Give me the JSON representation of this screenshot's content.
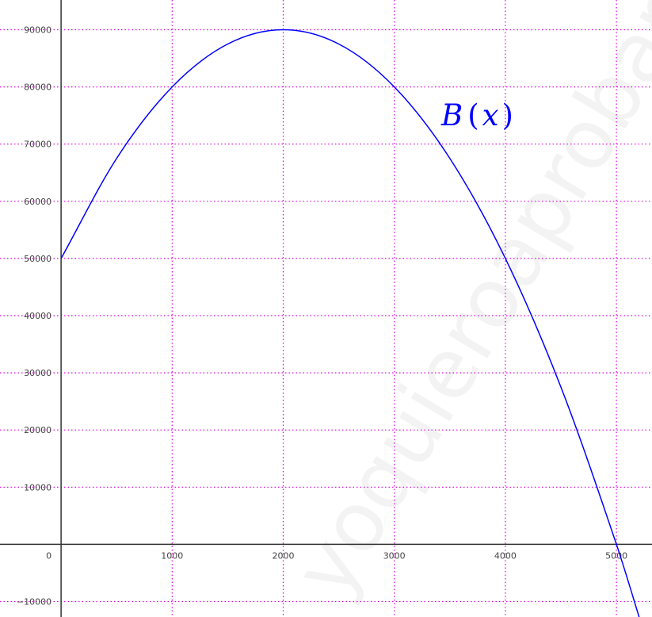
{
  "chart_data": {
    "type": "line",
    "title": "",
    "xlabel": "",
    "ylabel": "",
    "xlim": [
      -550,
      5320
    ],
    "ylim": [
      -12700,
      95200
    ],
    "x_ticks": [
      1000,
      2000,
      3000,
      4000,
      5000
    ],
    "y_ticks": [
      -10000,
      10000,
      20000,
      30000,
      40000,
      50000,
      60000,
      70000,
      80000,
      90000
    ],
    "origin_label": "0",
    "grid": true,
    "grid_color": "#e000e0",
    "axis_color": "#333333",
    "series": [
      {
        "name": "B(x)",
        "color": "#0000ff",
        "function": "B(x) = -0.01x^2 + 40x + 50000",
        "x": [
          0,
          500,
          1000,
          1500,
          2000,
          2500,
          3000,
          3500,
          4000,
          4500,
          5000,
          5240
        ],
        "y": [
          50000,
          67500,
          80000,
          87500,
          90000,
          87500,
          80000,
          67500,
          50000,
          27500,
          0,
          -14976
        ]
      }
    ],
    "curve_label": {
      "base": "B",
      "open": "(",
      "var": "x",
      "close": ")"
    },
    "watermark": "yoquieroaprobar"
  }
}
